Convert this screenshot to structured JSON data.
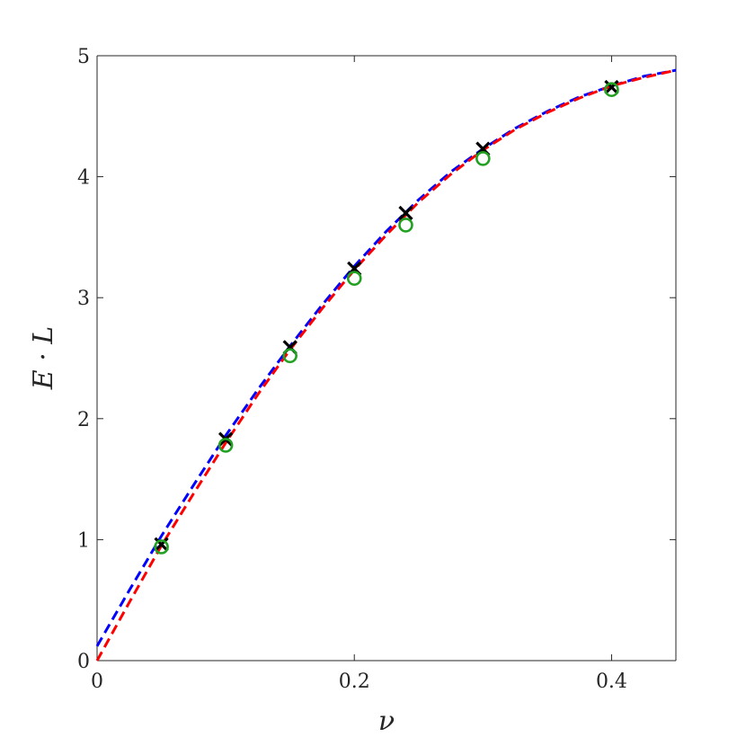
{
  "chart_data": {
    "type": "line",
    "title": "",
    "xlabel": "ν",
    "ylabel": "E · L",
    "xlim": [
      0,
      0.45
    ],
    "ylim": [
      0,
      5
    ],
    "x_ticks": [
      0,
      0.2,
      0.4
    ],
    "x_tick_labels": [
      "0",
      "0.2",
      "0.4"
    ],
    "y_ticks": [
      0,
      1,
      2,
      3,
      4,
      5
    ],
    "y_tick_labels": [
      "0",
      "1",
      "2",
      "3",
      "4",
      "5"
    ],
    "grid": false,
    "legend": "none",
    "series": [
      {
        "style": "dashed-line",
        "color": "#0000ff",
        "x": [
          0,
          0.025,
          0.05,
          0.075,
          0.1,
          0.125,
          0.15,
          0.175,
          0.2,
          0.225,
          0.25,
          0.275,
          0.3,
          0.325,
          0.35,
          0.375,
          0.4,
          0.425,
          0.45
        ],
        "y": [
          0.12,
          0.58,
          1.03,
          1.45,
          1.86,
          2.24,
          2.6,
          2.94,
          3.26,
          3.55,
          3.81,
          4.04,
          4.23,
          4.4,
          4.54,
          4.66,
          4.75,
          4.83,
          4.88
        ]
      },
      {
        "style": "dashed-line",
        "color": "#ff0000",
        "x": [
          0,
          0.025,
          0.05,
          0.075,
          0.1,
          0.125,
          0.15,
          0.175,
          0.2,
          0.225,
          0.25,
          0.275,
          0.3,
          0.325,
          0.35,
          0.375,
          0.4,
          0.425,
          0.45
        ],
        "y": [
          0,
          0.48,
          0.95,
          1.38,
          1.8,
          2.2,
          2.57,
          2.91,
          3.23,
          3.52,
          3.79,
          4.02,
          4.22,
          4.39,
          4.53,
          4.65,
          4.75,
          4.82,
          4.88
        ]
      },
      {
        "style": "x-markers",
        "color": "#000000",
        "x": [
          0.05,
          0.1,
          0.15,
          0.2,
          0.24,
          0.3,
          0.4
        ],
        "y": [
          0.96,
          1.83,
          2.59,
          3.24,
          3.7,
          4.23,
          4.74
        ]
      },
      {
        "style": "circle-markers",
        "color": "#22a022",
        "x": [
          0.05,
          0.1,
          0.15,
          0.2,
          0.24,
          0.3,
          0.4
        ],
        "y": [
          0.94,
          1.78,
          2.52,
          3.16,
          3.6,
          4.15,
          4.72
        ]
      }
    ]
  }
}
